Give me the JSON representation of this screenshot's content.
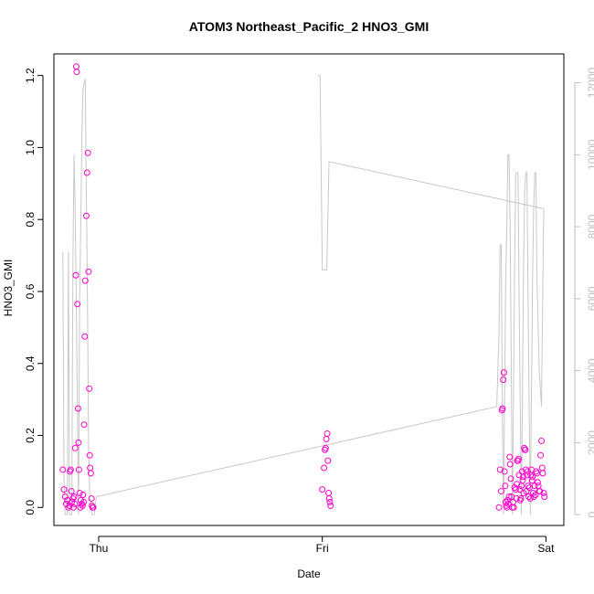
{
  "chart_data": {
    "type": "scatter",
    "title": "ATOM3 Northeast_Pacific_2 HNO3_GMI",
    "xlabel": "Date",
    "ylabel": "HNO3_GMI",
    "x_ticks": [
      {
        "label": "Thu",
        "value": 1.0
      },
      {
        "label": "Fri",
        "value": 2.0
      },
      {
        "label": "Sat",
        "value": 3.0
      }
    ],
    "xlim": [
      0.8,
      3.08
    ],
    "ylim": [
      -0.05,
      1.26
    ],
    "y_ticks": [
      "0.0",
      "0.2",
      "0.4",
      "0.6",
      "0.8",
      "1.0",
      "1.2"
    ],
    "y_tick_values": [
      0.0,
      0.2,
      0.4,
      0.6,
      0.8,
      1.0,
      1.2
    ],
    "ylim_right": [
      -300,
      12800
    ],
    "y_ticks_right": [
      "0",
      "2000",
      "4000",
      "6000",
      "8000",
      "10000",
      "12000"
    ],
    "y_tick_values_right": [
      0,
      2000,
      4000,
      6000,
      8000,
      10000,
      12000
    ],
    "grid": false,
    "colors": {
      "points": "#ff00cc",
      "line": "#c8c8c8",
      "axis": "#000000",
      "right_axis": "#bebebe"
    },
    "series": [
      {
        "type": "scatter",
        "axis": "left",
        "points": [
          [
            0.84,
            0.105
          ],
          [
            0.845,
            0.05
          ],
          [
            0.85,
            0.03
          ],
          [
            0.855,
            0.01
          ],
          [
            0.86,
            0.02
          ],
          [
            0.865,
            0.0
          ],
          [
            0.87,
            0.005
          ],
          [
            0.872,
            0.1
          ],
          [
            0.875,
            0.105
          ],
          [
            0.878,
            0.045
          ],
          [
            0.88,
            0.015
          ],
          [
            0.885,
            0.025
          ],
          [
            0.888,
            0.0
          ],
          [
            0.89,
            0.03
          ],
          [
            0.893,
            0.01
          ],
          [
            0.895,
            0.165
          ],
          [
            0.898,
            0.645
          ],
          [
            0.9,
            1.225
          ],
          [
            0.902,
            1.21
          ],
          [
            0.905,
            0.565
          ],
          [
            0.908,
            0.275
          ],
          [
            0.91,
            0.18
          ],
          [
            0.912,
            0.105
          ],
          [
            0.915,
            0.04
          ],
          [
            0.918,
            0.0
          ],
          [
            0.92,
            0.02
          ],
          [
            0.925,
            0.01
          ],
          [
            0.928,
            0.005
          ],
          [
            0.93,
            0.035
          ],
          [
            0.933,
            0.015
          ],
          [
            0.935,
            0.23
          ],
          [
            0.938,
            0.475
          ],
          [
            0.94,
            0.63
          ],
          [
            0.945,
            0.81
          ],
          [
            0.948,
            0.93
          ],
          [
            0.952,
            0.985
          ],
          [
            0.955,
            0.655
          ],
          [
            0.958,
            0.33
          ],
          [
            0.96,
            0.145
          ],
          [
            0.962,
            0.11
          ],
          [
            0.965,
            0.095
          ],
          [
            0.968,
            0.025
          ],
          [
            0.97,
            0.005
          ],
          [
            0.973,
            0.0
          ],
          [
            0.976,
            0.0
          ],
          [
            2.0,
            0.05
          ],
          [
            2.008,
            0.11
          ],
          [
            2.012,
            0.16
          ],
          [
            2.015,
            0.165
          ],
          [
            2.018,
            0.19
          ],
          [
            2.022,
            0.205
          ],
          [
            2.025,
            0.13
          ],
          [
            2.028,
            0.04
          ],
          [
            2.031,
            0.025
          ],
          [
            2.034,
            0.015
          ],
          [
            2.037,
            0.005
          ],
          [
            2.79,
            0.0
          ],
          [
            2.795,
            0.105
          ],
          [
            2.8,
            0.045
          ],
          [
            2.803,
            0.27
          ],
          [
            2.806,
            0.275
          ],
          [
            2.809,
            0.355
          ],
          [
            2.812,
            0.375
          ],
          [
            2.815,
            0.1
          ],
          [
            2.818,
            0.06
          ],
          [
            2.82,
            0.015
          ],
          [
            2.823,
            0.005
          ],
          [
            2.826,
            0.0
          ],
          [
            2.828,
            0.02
          ],
          [
            2.832,
            0.01
          ],
          [
            2.835,
            0.03
          ],
          [
            2.838,
            0.14
          ],
          [
            2.84,
            0.12
          ],
          [
            2.843,
            0.08
          ],
          [
            2.846,
            0.03
          ],
          [
            2.85,
            0.0
          ],
          [
            2.853,
            0.015
          ],
          [
            2.856,
            0.0
          ],
          [
            2.86,
            0.055
          ],
          [
            2.865,
            0.05
          ],
          [
            2.868,
            0.025
          ],
          [
            2.87,
            0.065
          ],
          [
            2.872,
            0.13
          ],
          [
            2.875,
            0.13
          ],
          [
            2.878,
            0.135
          ],
          [
            2.88,
            0.09
          ],
          [
            2.883,
            0.05
          ],
          [
            2.885,
            0.02
          ],
          [
            2.888,
            0.025
          ],
          [
            2.89,
            0.06
          ],
          [
            2.893,
            0.1
          ],
          [
            2.896,
            0.075
          ],
          [
            2.898,
            0.085
          ],
          [
            2.9,
            0.04
          ],
          [
            2.903,
            0.165
          ],
          [
            2.906,
            0.16
          ],
          [
            2.908,
            0.16
          ],
          [
            2.91,
            0.105
          ],
          [
            2.912,
            0.045
          ],
          [
            2.915,
            0.09
          ],
          [
            2.918,
            0.1
          ],
          [
            2.92,
            0.06
          ],
          [
            2.923,
            0.03
          ],
          [
            2.926,
            0.055
          ],
          [
            2.93,
            0.025
          ],
          [
            2.932,
            0.09
          ],
          [
            2.935,
            0.105
          ],
          [
            2.938,
            0.075
          ],
          [
            2.94,
            0.085
          ],
          [
            2.943,
            0.04
          ],
          [
            2.946,
            0.03
          ],
          [
            2.95,
            0.06
          ],
          [
            2.953,
            0.035
          ],
          [
            2.956,
            0.1
          ],
          [
            2.96,
            0.095
          ],
          [
            2.963,
            0.07
          ],
          [
            2.966,
            0.06
          ],
          [
            2.97,
            0.045
          ],
          [
            2.973,
            0.045
          ],
          [
            2.976,
            0.145
          ],
          [
            2.98,
            0.185
          ],
          [
            2.983,
            0.11
          ],
          [
            2.986,
            0.095
          ],
          [
            2.99,
            0.04
          ],
          [
            2.993,
            0.03
          ]
        ]
      },
      {
        "type": "line",
        "axis": "right",
        "points": [
          [
            0.84,
            7300
          ],
          [
            0.845,
            1000
          ],
          [
            0.85,
            0
          ],
          [
            0.855,
            0
          ],
          [
            0.86,
            0
          ],
          [
            0.865,
            7300
          ],
          [
            0.87,
            0
          ],
          [
            0.875,
            0
          ],
          [
            0.88,
            0
          ],
          [
            0.885,
            7000
          ],
          [
            0.89,
            10000
          ],
          [
            0.895,
            8500
          ],
          [
            0.9,
            6000
          ],
          [
            0.905,
            3000
          ],
          [
            0.91,
            0
          ],
          [
            0.915,
            6000
          ],
          [
            0.92,
            8000
          ],
          [
            0.925,
            10500
          ],
          [
            0.93,
            11800
          ],
          [
            0.935,
            12000
          ],
          [
            0.94,
            12100
          ],
          [
            0.945,
            9000
          ],
          [
            0.95,
            6000
          ],
          [
            0.955,
            2000
          ],
          [
            0.96,
            500
          ],
          [
            0.97,
            0
          ],
          [
            0.98,
            0
          ],
          [
            0.99,
            500
          ],
          [
            2.78,
            3000
          ],
          [
            2.79,
            5000
          ],
          [
            2.795,
            7500
          ],
          [
            2.8,
            7500
          ],
          [
            2.805,
            3000
          ],
          [
            2.81,
            0
          ],
          [
            2.82,
            6500
          ],
          [
            2.825,
            8000
          ],
          [
            2.83,
            10000
          ],
          [
            2.835,
            10000
          ],
          [
            2.84,
            8000
          ],
          [
            2.845,
            4000
          ],
          [
            2.85,
            0
          ],
          [
            2.86,
            7000
          ],
          [
            2.865,
            9500
          ],
          [
            2.87,
            9500
          ],
          [
            2.875,
            9500
          ],
          [
            2.88,
            6000
          ],
          [
            2.885,
            3000
          ],
          [
            2.89,
            0
          ],
          [
            2.9,
            7000
          ],
          [
            2.905,
            9000
          ],
          [
            2.91,
            9500
          ],
          [
            2.915,
            9500
          ],
          [
            2.92,
            6000
          ],
          [
            2.925,
            3000
          ],
          [
            2.93,
            0
          ],
          [
            2.94,
            6500
          ],
          [
            2.945,
            8500
          ],
          [
            2.95,
            9500
          ],
          [
            2.955,
            9500
          ],
          [
            2.96,
            6500
          ],
          [
            2.97,
            4000
          ],
          [
            2.98,
            3000
          ],
          [
            2.99,
            8500
          ]
        ]
      },
      {
        "type": "line",
        "axis": "right",
        "points": [
          [
            1.98,
            12200
          ],
          [
            1.99,
            12200
          ],
          [
            1.995,
            9500
          ],
          [
            2.0,
            6800
          ],
          [
            2.02,
            6800
          ],
          [
            2.03,
            9800
          ],
          [
            2.035,
            9800
          ],
          [
            2.99,
            8500
          ]
        ]
      }
    ]
  }
}
